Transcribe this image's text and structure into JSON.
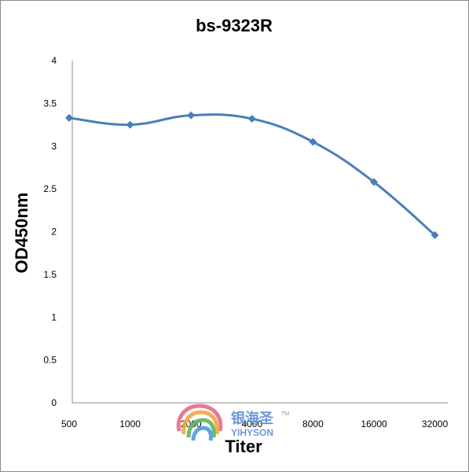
{
  "chart_data": {
    "type": "line",
    "title": "bs-9323R",
    "xlabel": "Titer",
    "ylabel": "OD450nm",
    "categories": [
      "500",
      "1000",
      "2000",
      "4000",
      "8000",
      "16000",
      "32000"
    ],
    "series": [
      {
        "values": [
          3.33,
          3.25,
          3.36,
          3.32,
          3.05,
          2.58,
          1.96
        ],
        "color": "#4a7ebb",
        "marker": "diamond"
      }
    ],
    "ylim": [
      0,
      4
    ],
    "yticks": [
      "0",
      "0.5",
      "1",
      "1.5",
      "2",
      "2.5",
      "3",
      "3.5",
      "4"
    ],
    "grid": false,
    "smooth": true
  },
  "watermark": {
    "text_cn": "银海圣",
    "tm": "TM",
    "text_en": "YIHYSON"
  }
}
